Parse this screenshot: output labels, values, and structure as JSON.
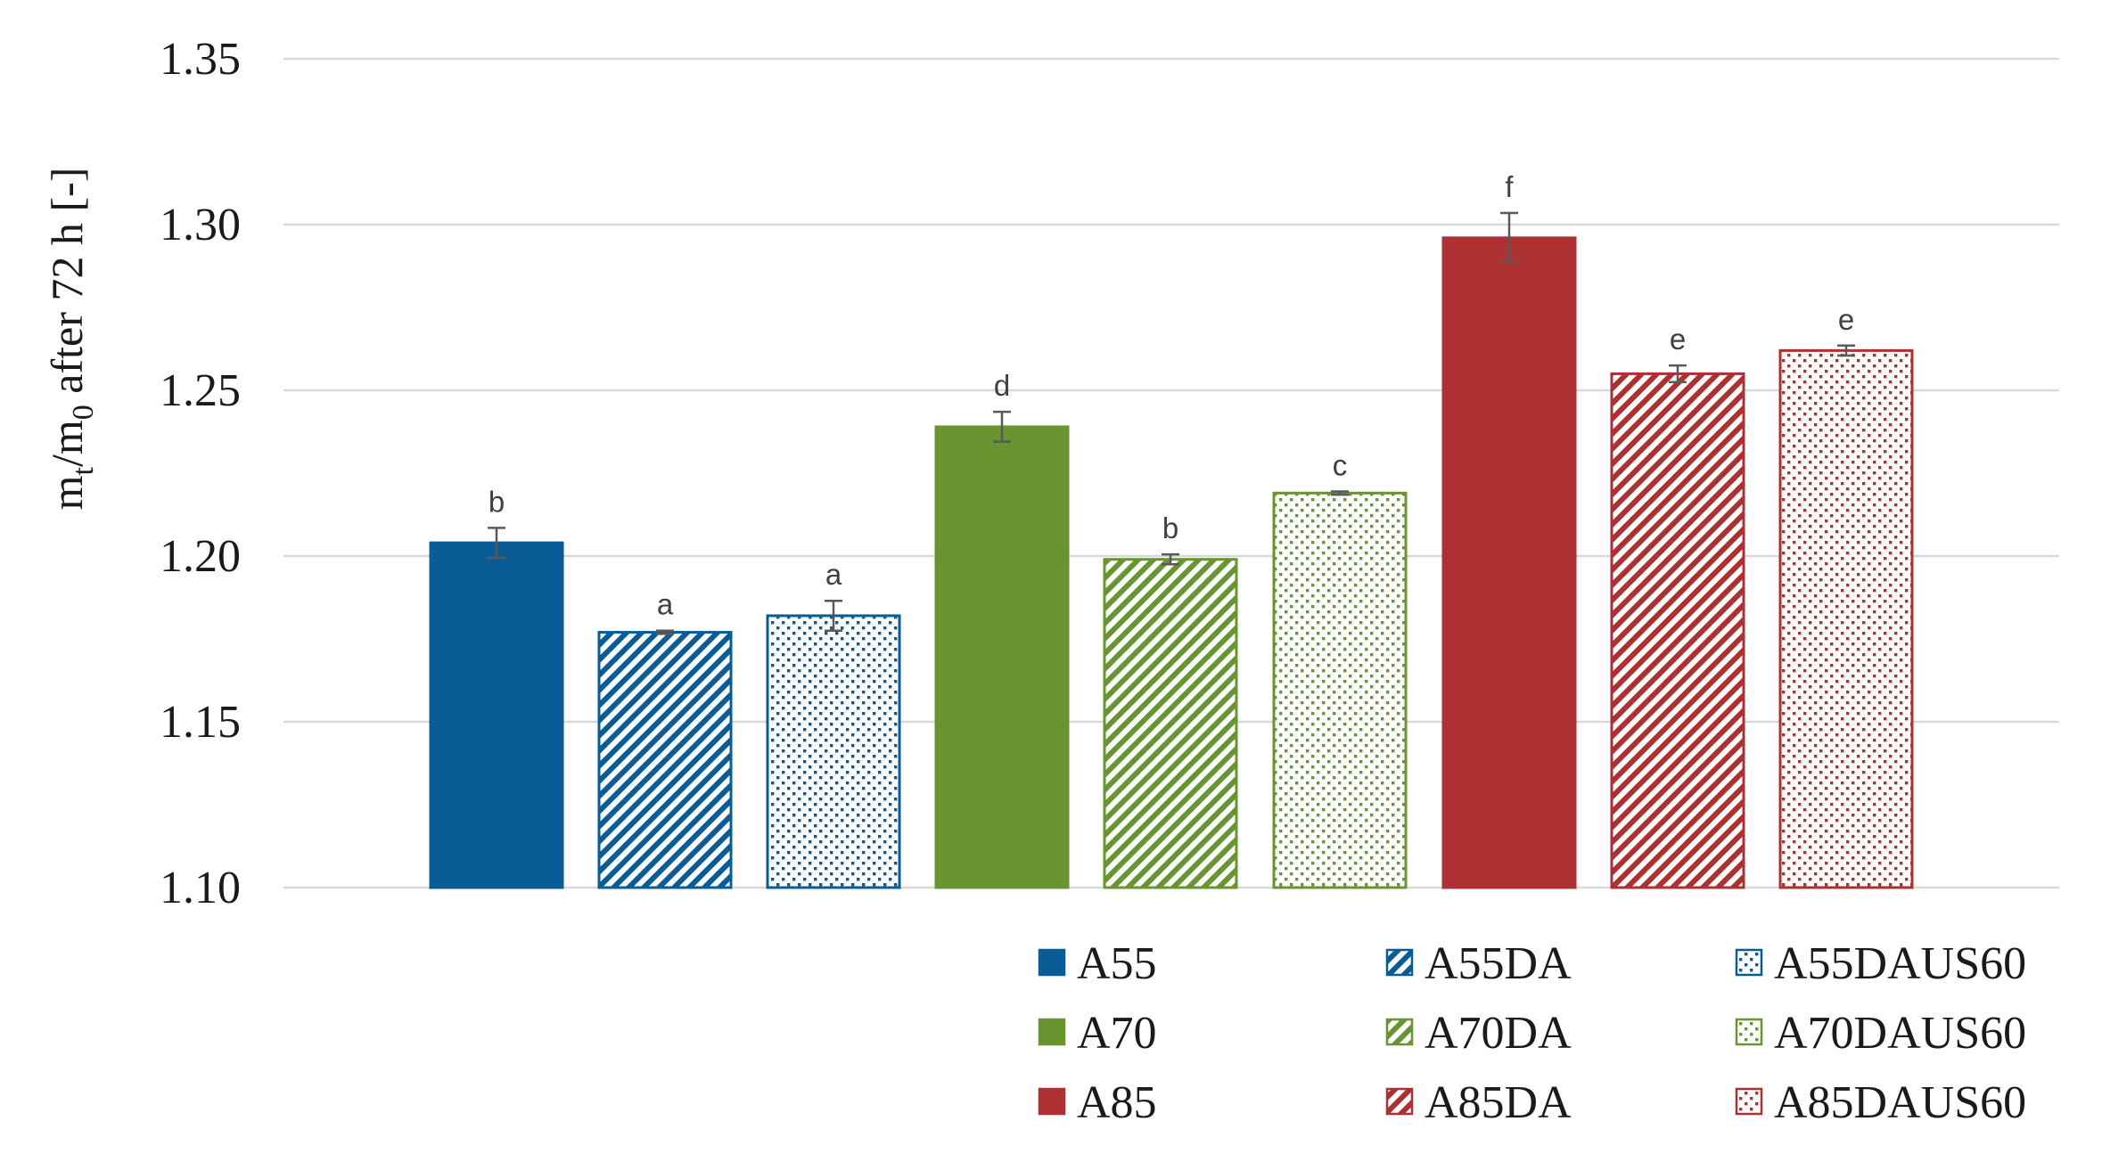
{
  "chart_data": {
    "type": "bar",
    "title": "",
    "xlabel": "",
    "ylabel": {
      "m": "m",
      "t": "t",
      "slash": "/m",
      "zero": "0",
      "rest": " after 72 h [-]"
    },
    "ylim": [
      1.1,
      1.35
    ],
    "yticks": [
      1.1,
      1.15,
      1.2,
      1.25,
      1.3,
      1.35
    ],
    "ytick_labels": [
      "1.10",
      "1.15",
      "1.20",
      "1.25",
      "1.30",
      "1.35"
    ],
    "grid": true,
    "legend_position": "bottom-right",
    "categories": [
      "A55",
      "A55DA",
      "A55DAUS60",
      "A70",
      "A70DA",
      "A70DAUS60",
      "A85",
      "A85DA",
      "A85DAUS60"
    ],
    "values": [
      1.204,
      1.177,
      1.182,
      1.239,
      1.199,
      1.219,
      1.296,
      1.255,
      1.262
    ],
    "errors": [
      0.0045,
      0.0005,
      0.0045,
      0.0045,
      0.0015,
      0.0005,
      0.0075,
      0.0025,
      0.0015
    ],
    "significance_letters": [
      "b",
      "a",
      "a",
      "d",
      "b",
      "c",
      "f",
      "e",
      "e"
    ],
    "colors": [
      "#0a5c96",
      "#0a5c96",
      "#0a5c96",
      "#68952f",
      "#68952f",
      "#68952f",
      "#ad3032",
      "#ad3032",
      "#ad3032"
    ],
    "patterns": [
      "solid",
      "diagonal",
      "dots",
      "solid",
      "diagonal",
      "dots",
      "solid",
      "diagonal",
      "dots"
    ],
    "legend": {
      "columns": 3,
      "items": [
        {
          "label": "A55",
          "index": 0
        },
        {
          "label": "A55DA",
          "index": 1
        },
        {
          "label": "A55DAUS60",
          "index": 2
        },
        {
          "label": "A70",
          "index": 3
        },
        {
          "label": "A70DA",
          "index": 4
        },
        {
          "label": "A70DAUS60",
          "index": 5
        },
        {
          "label": "A85",
          "index": 6
        },
        {
          "label": "A85DA",
          "index": 7
        },
        {
          "label": "A85DAUS60",
          "index": 8
        }
      ]
    }
  }
}
